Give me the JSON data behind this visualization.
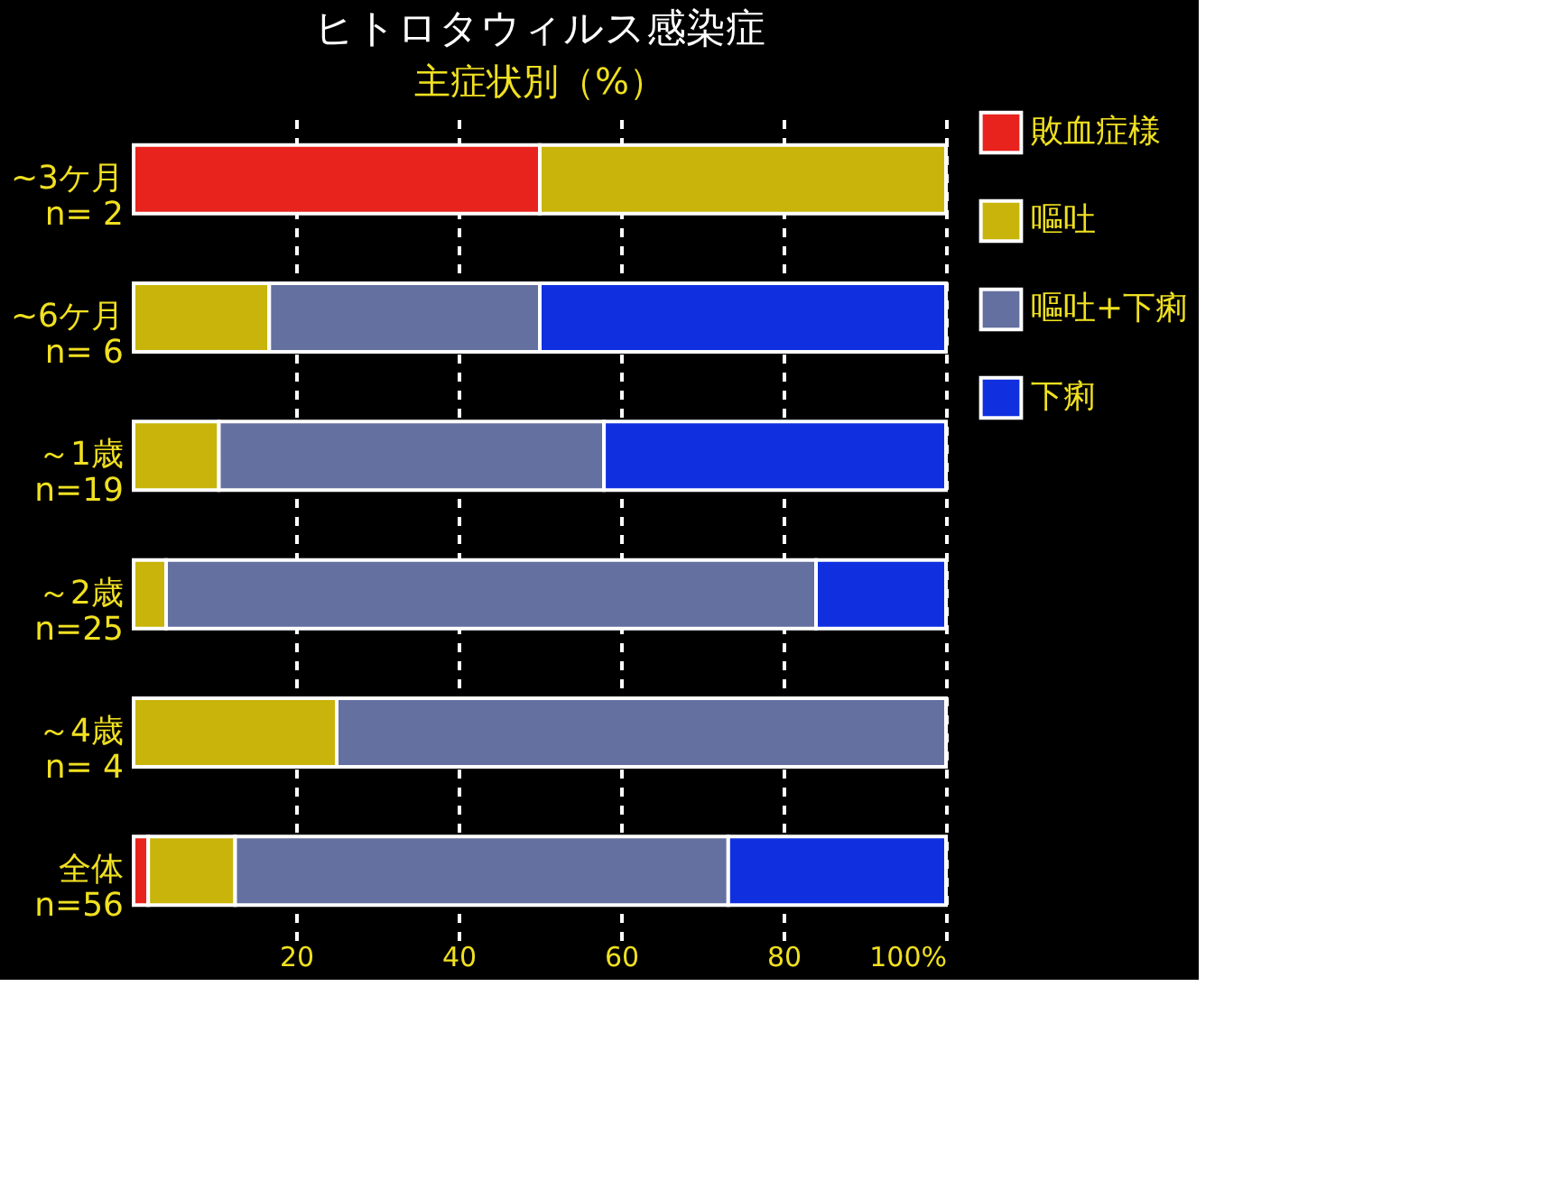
{
  "chart_data": {
    "type": "bar",
    "orientation": "horizontal",
    "stacked": true,
    "title": "ヒトロタウィルス感染症",
    "subtitle": "主症状別（%）",
    "categories": [
      "~3ケ月\nn= 2",
      "~6ケ月\nn= 6",
      "～1歳\nn=19",
      "～2歳\nn=25",
      "～4歳\nn= 4",
      "全体\nn=56"
    ],
    "series": [
      {
        "name": "敗血症様",
        "color": "#e8231e",
        "values": [
          50,
          0,
          0,
          0,
          0,
          1.8
        ]
      },
      {
        "name": "嘔吐",
        "color": "#c8b40a",
        "values": [
          50,
          16.7,
          10.5,
          4,
          25,
          10.7
        ]
      },
      {
        "name": "嘔吐+下痢",
        "color": "#6470a0",
        "values": [
          0,
          33.3,
          47.4,
          80,
          75,
          60.7
        ]
      },
      {
        "name": "下痢",
        "color": "#1030e0",
        "values": [
          0,
          50,
          42.1,
          16,
          0,
          26.8
        ]
      }
    ],
    "xlim": [
      0,
      100
    ],
    "xticks": [
      20,
      40,
      60,
      80,
      {
        "value": 100,
        "label": "100%"
      }
    ],
    "grid": "x",
    "legend": "right"
  }
}
